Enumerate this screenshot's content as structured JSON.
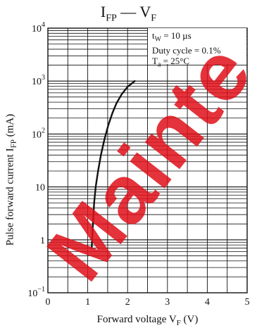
{
  "colors": {
    "watermark": "#e0101a",
    "line": "#111111",
    "grid": "#111111"
  },
  "watermark_text": "Mainte",
  "chart_data": {
    "type": "line",
    "title": {
      "main_a": "I",
      "main_a_sub": "FP",
      "dash": " — ",
      "main_b": "V",
      "main_b_sub": "F"
    },
    "xlabel": {
      "text": "Forward voltage  V",
      "sub": "F",
      "unit": "  (V)"
    },
    "ylabel": {
      "text": "Pulse forward current  I",
      "sub": "FP",
      "unit": "  (mA)"
    },
    "x_scale": "linear",
    "y_scale": "log",
    "xlim": [
      0,
      5
    ],
    "ylim": [
      0.1,
      10000
    ],
    "x_ticks": [
      "0",
      "1",
      "2",
      "3",
      "4",
      "5"
    ],
    "y_ticks": [
      {
        "base": "10",
        "exp": "−1"
      },
      {
        "base": "1",
        "exp": ""
      },
      {
        "base": "10",
        "exp": ""
      },
      {
        "base": "10",
        "exp": "2"
      },
      {
        "base": "10",
        "exp": "3"
      },
      {
        "base": "10",
        "exp": "4"
      }
    ],
    "grid": true,
    "legend_position": "top-right",
    "annotations": [
      {
        "a": "t",
        "a_sub": "W",
        "b": " = 10 µs"
      },
      {
        "a": "Duty cycle = 0.1%",
        "a_sub": "",
        "b": ""
      },
      {
        "a": "T",
        "a_sub": "a",
        "b": " = 25°C"
      }
    ],
    "series": [
      {
        "x": [
          1.1,
          1.11,
          1.13,
          1.16,
          1.2,
          1.26,
          1.33,
          1.42,
          1.52,
          1.62,
          1.72,
          1.85,
          2.0,
          2.18
        ],
        "y": [
          0.7,
          1.0,
          2.0,
          5.0,
          10,
          20,
          40,
          80,
          150,
          250,
          380,
          560,
          780,
          1000
        ]
      }
    ]
  }
}
